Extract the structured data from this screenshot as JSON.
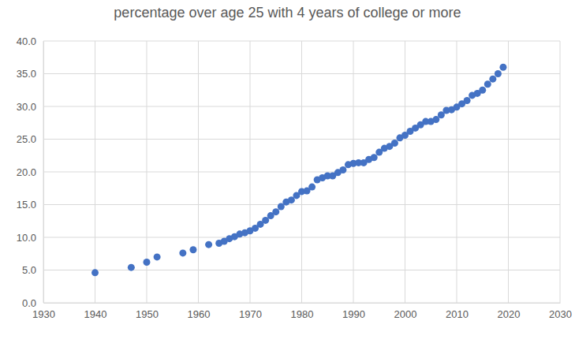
{
  "chart_data": {
    "type": "scatter",
    "title": "percentage over age 25 with 4 years of college or more",
    "x": [
      1940,
      1947,
      1950,
      1952,
      1957,
      1959,
      1962,
      1964,
      1965,
      1966,
      1967,
      1968,
      1969,
      1970,
      1971,
      1972,
      1973,
      1974,
      1975,
      1976,
      1977,
      1978,
      1979,
      1980,
      1981,
      1982,
      1983,
      1984,
      1985,
      1986,
      1987,
      1988,
      1989,
      1990,
      1991,
      1992,
      1993,
      1994,
      1995,
      1996,
      1997,
      1998,
      1999,
      2000,
      2001,
      2002,
      2003,
      2004,
      2005,
      2006,
      2007,
      2008,
      2009,
      2010,
      2011,
      2012,
      2013,
      2014,
      2015,
      2016,
      2017,
      2018,
      2019
    ],
    "values": [
      4.6,
      5.4,
      6.2,
      7.0,
      7.6,
      8.1,
      8.9,
      9.1,
      9.4,
      9.8,
      10.1,
      10.5,
      10.7,
      11.0,
      11.4,
      12.0,
      12.6,
      13.3,
      13.9,
      14.7,
      15.4,
      15.7,
      16.4,
      17.0,
      17.1,
      17.7,
      18.8,
      19.1,
      19.4,
      19.4,
      19.9,
      20.3,
      21.1,
      21.3,
      21.4,
      21.4,
      21.9,
      22.2,
      23.0,
      23.6,
      23.9,
      24.4,
      25.2,
      25.6,
      26.2,
      26.7,
      27.2,
      27.7,
      27.7,
      28.0,
      28.7,
      29.4,
      29.5,
      29.9,
      30.4,
      30.9,
      31.7,
      32.0,
      32.5,
      33.4,
      34.2,
      35.0,
      36.0
    ],
    "color": "#4472c4",
    "marker": "circle",
    "xlim": [
      1930,
      2030
    ],
    "ylim": [
      0,
      40
    ],
    "xticks": [
      1930,
      1940,
      1950,
      1960,
      1970,
      1980,
      1990,
      2000,
      2010,
      2020,
      2030
    ],
    "yticks": [
      {
        "value": 0,
        "label": "0.0"
      },
      {
        "value": 5,
        "label": "5.0"
      },
      {
        "value": 10,
        "label": "10.0"
      },
      {
        "value": 15,
        "label": "15.0"
      },
      {
        "value": 20,
        "label": "20.0"
      },
      {
        "value": 25,
        "label": "25.0"
      },
      {
        "value": 30,
        "label": "30.0"
      },
      {
        "value": 35,
        "label": "35.0"
      },
      {
        "value": 40,
        "label": "40.0"
      }
    ],
    "grid": true
  }
}
